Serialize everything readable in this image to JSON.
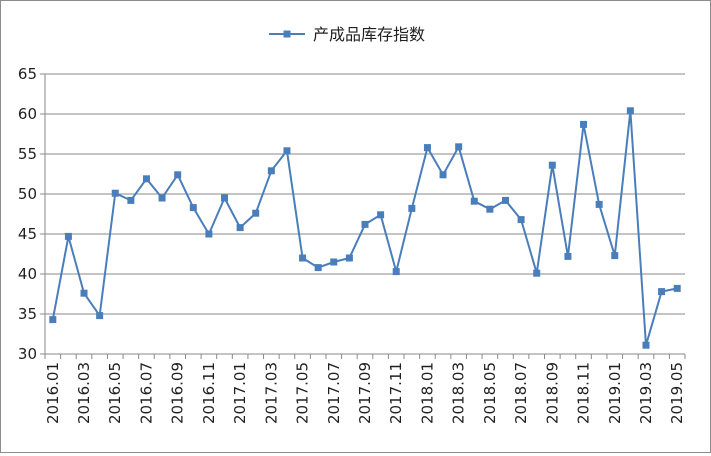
{
  "chart_data": {
    "type": "line",
    "legend": {
      "label": "产成品库存指数",
      "position": "top-center"
    },
    "series": [
      {
        "name": "产成品库存指数",
        "color": "#4a7ebb",
        "marker": "square",
        "values": [
          34.3,
          44.7,
          37.6,
          34.8,
          50.1,
          49.2,
          51.9,
          49.5,
          52.4,
          48.3,
          45.0,
          49.5,
          45.8,
          47.6,
          52.9,
          55.4,
          42.0,
          40.8,
          41.5,
          42.0,
          46.2,
          47.4,
          40.3,
          48.2,
          55.8,
          52.4,
          55.9,
          49.1,
          48.1,
          49.2,
          46.8,
          40.1,
          53.6,
          42.2,
          58.7,
          48.7,
          42.3,
          60.4,
          31.1,
          37.8,
          38.2
        ]
      }
    ],
    "x": [
      "2016.01",
      "2016.02",
      "2016.03",
      "2016.04",
      "2016.05",
      "2016.06",
      "2016.07",
      "2016.08",
      "2016.09",
      "2016.10",
      "2016.11",
      "2016.12",
      "2017.01",
      "2017.02",
      "2017.03",
      "2017.04",
      "2017.05",
      "2017.06",
      "2017.07",
      "2017.08",
      "2017.09",
      "2017.10",
      "2017.11",
      "2017.12",
      "2018.01",
      "2018.02",
      "2018.03",
      "2018.04",
      "2018.05",
      "2018.06",
      "2018.07",
      "2018.08",
      "2018.09",
      "2018.10",
      "2018.11",
      "2018.12",
      "2019.01",
      "2019.02",
      "2019.03",
      "2019.04",
      "2019.05"
    ],
    "x_tick_labels": [
      "2016.01",
      "2016.03",
      "2016.05",
      "2016.07",
      "2016.09",
      "2016.11",
      "2017.01",
      "2017.03",
      "2017.05",
      "2017.07",
      "2017.09",
      "2017.11",
      "2018.01",
      "2018.03",
      "2018.05",
      "2018.07",
      "2018.09",
      "2018.11",
      "2019.01",
      "2019.03",
      "2019.05"
    ],
    "y_ticks": [
      30,
      35,
      40,
      45,
      50,
      55,
      60,
      65
    ],
    "ylim": [
      30,
      65
    ],
    "grid": "horizontal"
  }
}
